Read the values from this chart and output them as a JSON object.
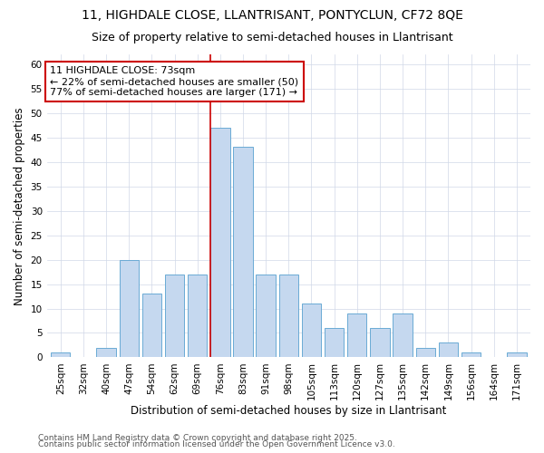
{
  "title_line1": "11, HIGHDALE CLOSE, LLANTRISANT, PONTYCLUN, CF72 8QE",
  "title_line2": "Size of property relative to semi-detached houses in Llantrisant",
  "xlabel": "Distribution of semi-detached houses by size in Llantrisant",
  "ylabel": "Number of semi-detached properties",
  "bar_labels": [
    "25sqm",
    "32sqm",
    "40sqm",
    "47sqm",
    "54sqm",
    "62sqm",
    "69sqm",
    "76sqm",
    "83sqm",
    "91sqm",
    "98sqm",
    "105sqm",
    "113sqm",
    "120sqm",
    "127sqm",
    "135sqm",
    "142sqm",
    "149sqm",
    "156sqm",
    "164sqm",
    "171sqm"
  ],
  "bar_values": [
    1,
    0,
    2,
    20,
    13,
    17,
    17,
    47,
    43,
    17,
    17,
    11,
    6,
    9,
    6,
    9,
    2,
    3,
    1,
    0,
    1
  ],
  "bar_color": "#c5d8ef",
  "bar_edgecolor": "#6aaad4",
  "annotation_text1": "11 HIGHDALE CLOSE: 73sqm",
  "annotation_text2": "← 22% of semi-detached houses are smaller (50)",
  "annotation_text3": "77% of semi-detached houses are larger (171) →",
  "annotation_box_facecolor": "#ffffff",
  "annotation_box_edgecolor": "#cc0000",
  "ylim": [
    0,
    62
  ],
  "yticks": [
    0,
    5,
    10,
    15,
    20,
    25,
    30,
    35,
    40,
    45,
    50,
    55,
    60
  ],
  "footer_line1": "Contains HM Land Registry data © Crown copyright and database right 2025.",
  "footer_line2": "Contains public sector information licensed under the Open Government Licence v3.0.",
  "background_color": "#ffffff",
  "plot_bg_color": "#ffffff",
  "grid_color": "#d0d8e8",
  "red_line_color": "#cc0000",
  "title_fontsize": 10,
  "subtitle_fontsize": 9,
  "axis_label_fontsize": 8.5,
  "tick_fontsize": 7.5,
  "annotation_fontsize": 8,
  "footer_fontsize": 6.5
}
